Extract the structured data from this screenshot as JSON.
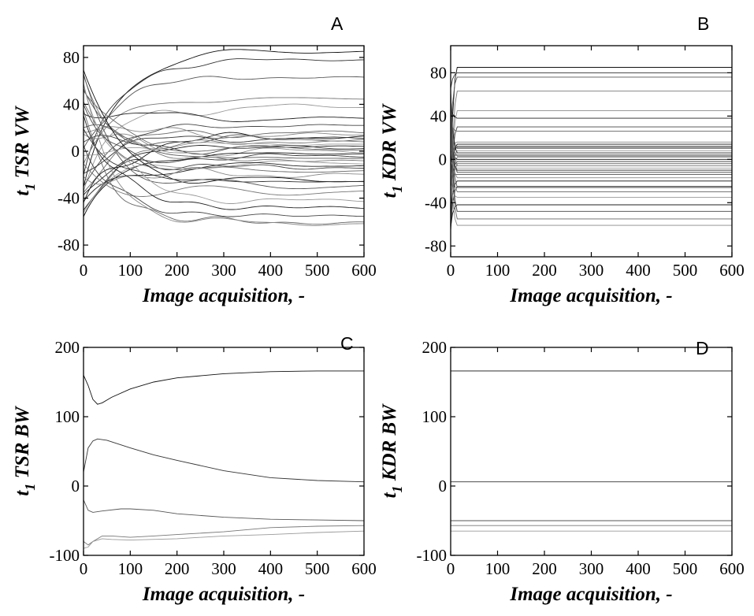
{
  "chart_data": [
    {
      "panel": "A",
      "type": "line",
      "xlabel": "Image acquisition, -",
      "ylabel": "t1 TSR VW",
      "ylabel_main": "t",
      "ylabel_sub": "1",
      "ylabel_rest": " TSR VW",
      "xlim": [
        0,
        600
      ],
      "ylim": [
        -90,
        90
      ],
      "xticks": [
        0,
        100,
        200,
        300,
        400,
        500,
        600
      ],
      "yticks": [
        -80,
        -40,
        0,
        40,
        80
      ],
      "final_values": [
        85,
        78,
        63,
        45,
        38,
        28,
        22,
        16,
        14,
        12,
        11,
        10,
        8,
        6,
        4,
        3,
        2,
        0,
        -2,
        -4,
        -6,
        -8,
        -10,
        -12,
        -14,
        -17,
        -20,
        -25,
        -26,
        -30,
        -35,
        -42,
        -48,
        -55,
        -61,
        -62
      ]
    },
    {
      "panel": "B",
      "type": "line",
      "xlabel": "Image acquisition, -",
      "ylabel": "t1 KDR VW",
      "ylabel_main": "t",
      "ylabel_sub": "1",
      "ylabel_rest": " KDR VW",
      "xlim": [
        0,
        600
      ],
      "ylim": [
        -90,
        105
      ],
      "xticks": [
        0,
        100,
        200,
        300,
        400,
        500,
        600
      ],
      "yticks": [
        -80,
        -40,
        0,
        40,
        80
      ],
      "final_values": [
        85,
        80,
        76,
        63,
        45,
        38,
        30,
        26,
        16,
        14,
        12,
        11,
        10,
        8,
        6,
        4,
        3,
        2,
        0,
        -2,
        -4,
        -6,
        -8,
        -10,
        -12,
        -14,
        -17,
        -20,
        -25,
        -26,
        -30,
        -35,
        -42,
        -48,
        -55,
        -61
      ]
    },
    {
      "panel": "C",
      "type": "line",
      "xlabel": "Image acquisition, -",
      "ylabel": "t1 TSR BW",
      "ylabel_main": "t",
      "ylabel_sub": "1",
      "ylabel_rest": " TSR BW",
      "xlim": [
        0,
        600
      ],
      "ylim": [
        -100,
        200
      ],
      "xticks": [
        0,
        100,
        200,
        300,
        400,
        500,
        600
      ],
      "yticks": [
        -100,
        0,
        100,
        200
      ],
      "series": [
        {
          "x": [
            0,
            10,
            20,
            30,
            40,
            60,
            100,
            150,
            200,
            300,
            400,
            500,
            600
          ],
          "values": [
            160,
            145,
            125,
            118,
            120,
            128,
            140,
            150,
            156,
            162,
            165,
            166,
            166
          ]
        },
        {
          "x": [
            0,
            10,
            20,
            30,
            50,
            100,
            150,
            200,
            300,
            400,
            500,
            600
          ],
          "values": [
            20,
            55,
            65,
            68,
            66,
            55,
            45,
            37,
            22,
            12,
            8,
            6
          ]
        },
        {
          "x": [
            0,
            10,
            20,
            40,
            80,
            100,
            150,
            200,
            300,
            400,
            500,
            600
          ],
          "values": [
            -20,
            -35,
            -38,
            -36,
            -33,
            -33,
            -35,
            -40,
            -45,
            -48,
            -49,
            -50
          ]
        },
        {
          "x": [
            0,
            10,
            20,
            40,
            60,
            100,
            150,
            200,
            300,
            400,
            500,
            600
          ],
          "values": [
            -80,
            -85,
            -80,
            -72,
            -72,
            -74,
            -72,
            -70,
            -66,
            -60,
            -58,
            -57
          ]
        },
        {
          "x": [
            0,
            10,
            20,
            40,
            60,
            100,
            200,
            300,
            400,
            500,
            600
          ],
          "values": [
            -90,
            -88,
            -80,
            -76,
            -77,
            -78,
            -76,
            -72,
            -70,
            -67,
            -65
          ]
        }
      ]
    },
    {
      "panel": "D",
      "type": "line",
      "xlabel": "Image acquisition, -",
      "ylabel": "t1 KDR BW",
      "ylabel_main": "t",
      "ylabel_sub": "1",
      "ylabel_rest": " KDR BW",
      "xlim": [
        0,
        600
      ],
      "ylim": [
        -100,
        200
      ],
      "xticks": [
        0,
        100,
        200,
        300,
        400,
        500,
        600
      ],
      "yticks": [
        -100,
        0,
        100,
        200
      ],
      "final_values": [
        166,
        6,
        -50,
        -57,
        -65
      ]
    }
  ]
}
